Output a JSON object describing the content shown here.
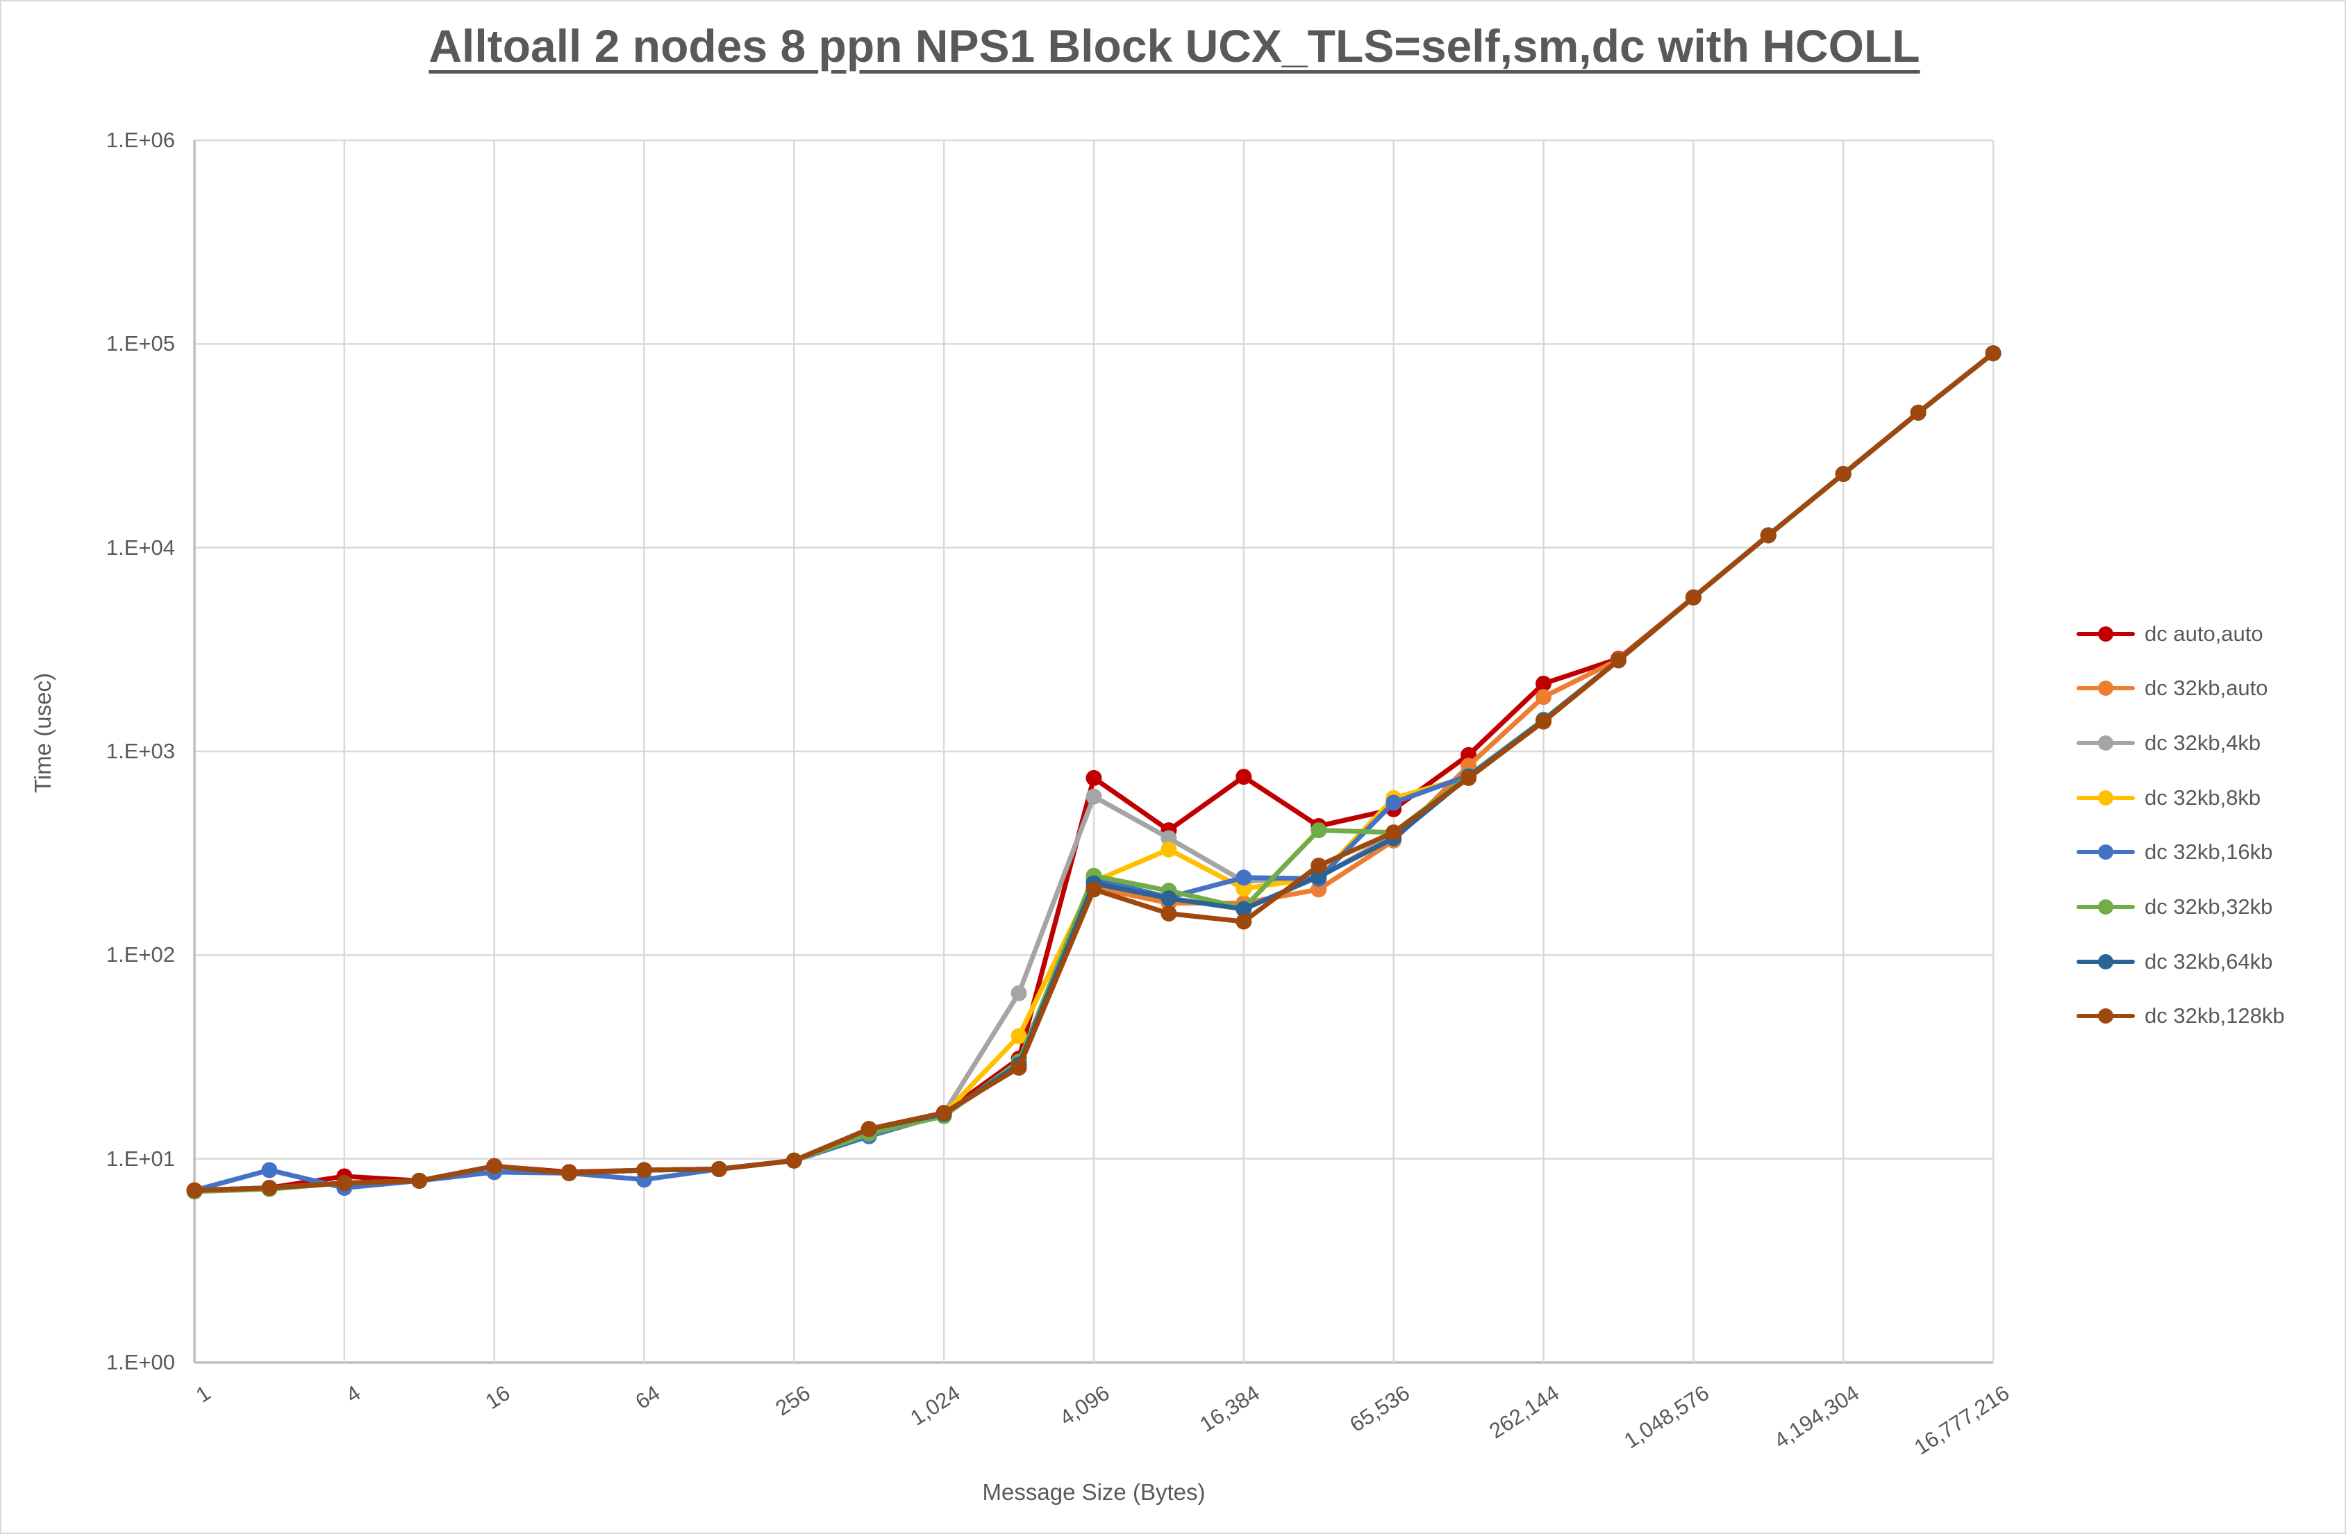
{
  "title": "Alltoall 2 nodes 8 ppn NPS1 Block UCX_TLS=self,sm,dc with HCOLL",
  "colors": {
    "grid": "#d9d9d9",
    "axis_line": "#bfbfbf",
    "text": "#595959",
    "background": "#ffffff"
  },
  "chart_data": {
    "type": "line",
    "title": "Alltoall 2 nodes 8 ppn NPS1 Block UCX_TLS=self,sm,dc with HCOLL",
    "xlabel": "Message Size (Bytes)",
    "ylabel": "Time (usec)",
    "x_scale": "log2-category",
    "y_scale": "log10",
    "ylim": [
      1,
      1000000
    ],
    "grid": true,
    "legend_position": "right",
    "x": [
      1,
      2,
      4,
      8,
      16,
      32,
      64,
      128,
      256,
      512,
      1024,
      2048,
      4096,
      8192,
      16384,
      32768,
      65536,
      131072,
      262144,
      524288,
      1048576,
      2097152,
      4194304,
      8388608,
      16777216
    ],
    "x_tick_labels": [
      "1",
      "4",
      "16",
      "64",
      "256",
      "1,024",
      "4,096",
      "16,384",
      "65,536",
      "262,144",
      "1,048,576",
      "4,194,304",
      "16,777,216"
    ],
    "y_tick_labels": [
      "1.E+00",
      "1.E+01",
      "1.E+02",
      "1.E+03",
      "1.E+04",
      "1.E+05",
      "1.E+06"
    ],
    "series": [
      {
        "name": "dc auto,auto",
        "color": "#c00000",
        "values": [
          7.0,
          7.2,
          8.2,
          7.8,
          9.2,
          8.6,
          8.8,
          8.9,
          9.8,
          14,
          16.8,
          31,
          740,
          410,
          750,
          430,
          520,
          960,
          2150,
          2850,
          5700,
          11500,
          23000,
          46000,
          90000
        ]
      },
      {
        "name": "dc 32kb,auto",
        "color": "#ed7d31",
        "values": [
          7.0,
          7.2,
          7.6,
          7.8,
          9.2,
          8.5,
          8.8,
          8.9,
          9.8,
          14,
          16.6,
          29,
          215,
          180,
          180,
          210,
          365,
          850,
          1850,
          2820,
          5700,
          11500,
          23000,
          46000,
          90000
        ]
      },
      {
        "name": "dc 32kb,4kb",
        "color": "#a5a5a5",
        "values": [
          7.0,
          7.2,
          7.6,
          7.8,
          9.2,
          8.5,
          8.8,
          8.9,
          9.8,
          14,
          16.7,
          65,
          600,
          375,
          230,
          240,
          390,
          755,
          1420,
          2800,
          5700,
          11500,
          23000,
          46000,
          90000
        ]
      },
      {
        "name": "dc 32kb,8kb",
        "color": "#ffc000",
        "values": [
          7.0,
          7.2,
          7.6,
          7.8,
          9.2,
          8.5,
          8.8,
          8.9,
          9.8,
          14,
          16.6,
          40,
          230,
          330,
          212,
          240,
          590,
          750,
          1410,
          2800,
          5700,
          11500,
          23000,
          46000,
          90000
        ]
      },
      {
        "name": "dc 32kb,16kb",
        "color": "#4472c4",
        "values": [
          7.0,
          8.8,
          7.2,
          7.8,
          8.6,
          8.5,
          7.9,
          8.9,
          9.8,
          12.9,
          16.5,
          28.5,
          237,
          192,
          240,
          237,
          560,
          760,
          1430,
          2800,
          5700,
          11500,
          23000,
          46000,
          90000
        ]
      },
      {
        "name": "dc 32kb,32kb",
        "color": "#70ad47",
        "values": [
          6.9,
          7.1,
          7.6,
          7.8,
          9.2,
          8.5,
          8.8,
          8.9,
          9.8,
          13.3,
          16.2,
          30,
          245,
          207,
          170,
          410,
          400,
          758,
          1425,
          2800,
          5700,
          11500,
          23000,
          46000,
          90000
        ]
      },
      {
        "name": "dc 32kb,64kb",
        "color": "#2a6396",
        "values": [
          7.0,
          7.2,
          7.6,
          7.8,
          9.2,
          8.5,
          8.8,
          8.9,
          9.8,
          14,
          16.6,
          29,
          225,
          190,
          168,
          243,
          375,
          752,
          1415,
          2800,
          5700,
          11500,
          23000,
          46000,
          90000
        ]
      },
      {
        "name": "dc 32kb,128kb",
        "color": "#9e480e",
        "values": [
          7.0,
          7.2,
          7.6,
          7.8,
          9.2,
          8.5,
          8.8,
          8.9,
          9.8,
          14,
          16.8,
          28,
          210,
          160,
          146,
          275,
          400,
          740,
          1400,
          2800,
          5700,
          11500,
          23000,
          46000,
          90000
        ]
      }
    ]
  }
}
